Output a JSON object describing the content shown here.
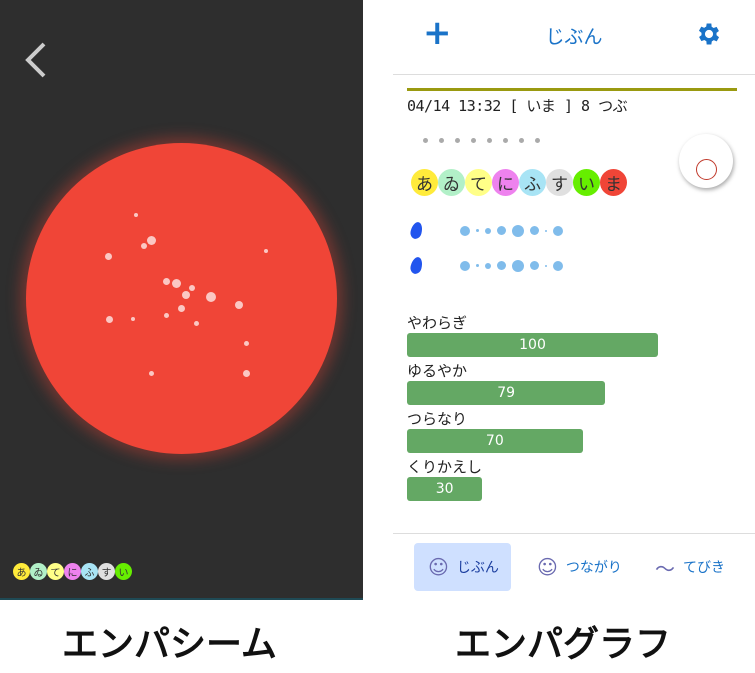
{
  "left": {
    "back_icon": "chevron-left-icon",
    "chips": [
      {
        "t": "あ",
        "c": "#ffeb3b"
      },
      {
        "t": "ゐ",
        "c": "#b2f0c8"
      },
      {
        "t": "て",
        "c": "#ffff88"
      },
      {
        "t": "に",
        "c": "#ee82ee"
      },
      {
        "t": "ふ",
        "c": "#a8e4f5"
      },
      {
        "t": "す",
        "c": "#e0e0e0"
      },
      {
        "t": "い",
        "c": "#66ee00"
      }
    ],
    "orb_color": "#f04537"
  },
  "right": {
    "header": {
      "add_icon": "plus-icon",
      "title": "じぶん",
      "settings_icon": "gear-icon"
    },
    "info": "04/14 13:32 [ いま ] 8 つぶ",
    "chips": [
      {
        "t": "あ",
        "c": "#ffeb3b"
      },
      {
        "t": "ゐ",
        "c": "#b2f0c8"
      },
      {
        "t": "て",
        "c": "#ffff88"
      },
      {
        "t": "に",
        "c": "#ee82ee"
      },
      {
        "t": "ふ",
        "c": "#a8e4f5"
      },
      {
        "t": "す",
        "c": "#e0e0e0"
      },
      {
        "t": "い",
        "c": "#66ee00"
      },
      {
        "t": "ま",
        "c": "#f04537"
      }
    ],
    "bars": [
      {
        "label": "やわらぎ",
        "value": 100
      },
      {
        "label": "ゆるやか",
        "value": 79
      },
      {
        "label": "つらなり",
        "value": 70
      },
      {
        "label": "くりかえし",
        "value": 30
      }
    ],
    "nav": [
      {
        "label": "じぶん",
        "icon": "person-icon",
        "selected": true
      },
      {
        "label": "つながり",
        "icon": "people-icon",
        "selected": false
      },
      {
        "label": "てびき",
        "icon": "feather-icon",
        "selected": false
      }
    ]
  },
  "captions": {
    "left": "エンパシーム",
    "right": "エンパグラフ"
  }
}
